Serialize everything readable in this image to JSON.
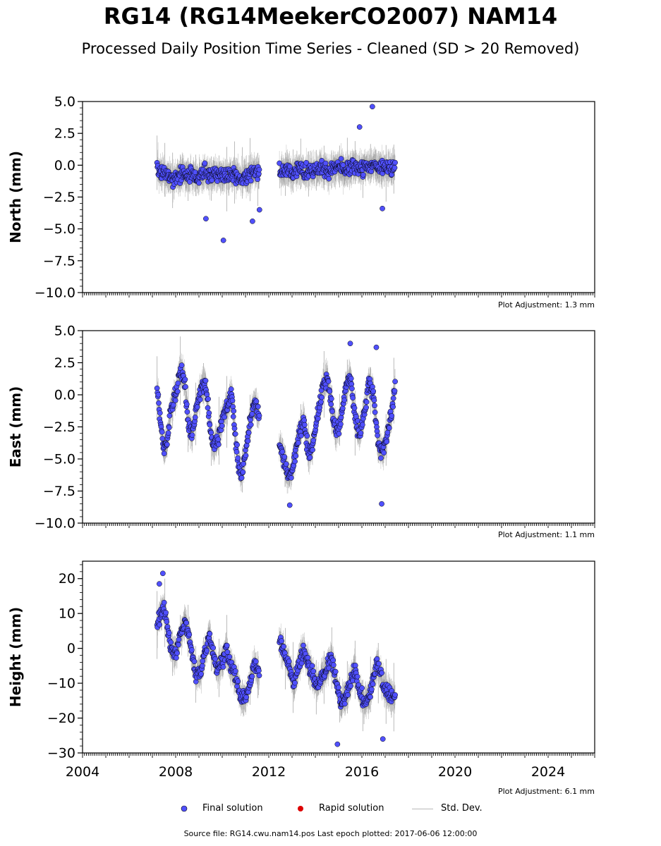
{
  "title": "RG14 (RG14MeekerCO2007) NAM14",
  "subtitle": "Processed Daily Position Time Series - Cleaned (SD > 20 Removed)",
  "footer": "Source file: RG14.cwu.nam14.pos  Last epoch plotted: 2017-06-06 12:00:00",
  "legend": {
    "final": "Final solution",
    "rapid": "Rapid solution",
    "std": "Std. Dev."
  },
  "colors": {
    "final_fill": "#5050ff",
    "final_edge": "#000000",
    "rapid": "#dd0000",
    "std": "#bbbbbb",
    "std_dense": "#777777"
  },
  "chart_data": [
    {
      "type": "scatter",
      "ylabel": "North (mm)",
      "ylim": [
        -10,
        5
      ],
      "yticks": [
        5.0,
        2.5,
        0.0,
        -2.5,
        -5.0,
        -7.5,
        -10.0
      ],
      "ytick_labels": [
        "5.0",
        "2.5",
        "0.0",
        "−2.5",
        "−5.0",
        "−7.5",
        "−10.0"
      ],
      "xlim": [
        2004,
        2026
      ],
      "adjustment": "Plot Adjustment: 1.3 mm",
      "series": [
        {
          "name": "Final solution",
          "x": [
            2007.25,
            2007.5,
            2007.75,
            2008.0,
            2008.25,
            2008.5,
            2008.75,
            2009.0,
            2009.25,
            2009.5,
            2009.75,
            2010.0,
            2010.25,
            2010.5,
            2010.75,
            2011.0,
            2011.25,
            2011.5,
            2012.5,
            2012.75,
            2013.0,
            2013.25,
            2013.5,
            2013.75,
            2014.0,
            2014.25,
            2014.5,
            2014.75,
            2015.0,
            2015.25,
            2015.5,
            2015.75,
            2016.0,
            2016.25,
            2016.5,
            2016.75,
            2017.0,
            2017.25,
            2017.42
          ],
          "y": [
            -0.8,
            -0.6,
            -0.9,
            -1.0,
            -0.7,
            -0.9,
            -0.8,
            -1.0,
            -0.6,
            -0.9,
            -0.7,
            -0.8,
            -0.9,
            -0.6,
            -0.9,
            -0.8,
            -0.7,
            -0.5,
            -0.5,
            -0.3,
            -0.6,
            -0.4,
            -0.3,
            -0.5,
            -0.3,
            -0.2,
            -0.4,
            -0.3,
            -0.2,
            -0.4,
            -0.3,
            -0.1,
            -0.3,
            -0.2,
            0.0,
            -0.2,
            -0.1,
            -0.3,
            0.0
          ]
        }
      ],
      "outliers": {
        "x": [
          2010.05,
          2011.3,
          2011.6,
          2009.3,
          2016.45,
          2015.9,
          2016.88
        ],
        "y": [
          -5.9,
          -4.4,
          -3.5,
          -4.2,
          4.6,
          3.0,
          -3.4
        ]
      }
    },
    {
      "type": "scatter",
      "ylabel": "East (mm)",
      "ylim": [
        -10,
        5
      ],
      "yticks": [
        5.0,
        2.5,
        0.0,
        -2.5,
        -5.0,
        -7.5,
        -10.0
      ],
      "ytick_labels": [
        "5.0",
        "2.5",
        "0.0",
        "−2.5",
        "−5.0",
        "−7.5",
        "−10.0"
      ],
      "xlim": [
        2004,
        2026
      ],
      "adjustment": "Plot Adjustment: 1.1 mm",
      "series": [
        {
          "name": "Final solution",
          "x": [
            2007.2,
            2007.35,
            2007.5,
            2007.65,
            2007.8,
            2008.0,
            2008.2,
            2008.4,
            2008.55,
            2008.7,
            2008.9,
            2009.1,
            2009.3,
            2009.45,
            2009.6,
            2009.8,
            2010.0,
            2010.2,
            2010.4,
            2010.6,
            2010.8,
            2011.0,
            2011.2,
            2011.4,
            2011.55,
            2012.5,
            2012.7,
            2012.9,
            2013.1,
            2013.3,
            2013.5,
            2013.7,
            2013.9,
            2014.1,
            2014.3,
            2014.5,
            2014.7,
            2014.9,
            2015.1,
            2015.3,
            2015.5,
            2015.7,
            2015.9,
            2016.1,
            2016.3,
            2016.5,
            2016.7,
            2016.9,
            2017.1,
            2017.3,
            2017.42
          ],
          "y": [
            0.5,
            -2.0,
            -4.5,
            -3.5,
            -1.0,
            0.0,
            2.0,
            1.0,
            -2.5,
            -3.0,
            -1.0,
            0.5,
            1.0,
            -2.0,
            -4.0,
            -3.5,
            -2.0,
            -1.0,
            0.0,
            -4.0,
            -6.5,
            -4.5,
            -2.0,
            -0.5,
            -1.5,
            -4.0,
            -5.5,
            -6.5,
            -5.0,
            -3.0,
            -2.0,
            -4.5,
            -4.0,
            -1.5,
            0.5,
            1.5,
            -1.0,
            -3.0,
            -2.0,
            0.5,
            1.5,
            -2.0,
            -3.0,
            -1.5,
            1.0,
            0.0,
            -4.0,
            -4.5,
            -3.0,
            -1.0,
            0.5
          ]
        }
      ],
      "outliers": {
        "x": [
          2015.5,
          2016.62,
          2016.85,
          2012.9
        ],
        "y": [
          4.0,
          3.7,
          -8.5,
          -8.6
        ]
      }
    },
    {
      "type": "scatter",
      "ylabel": "Height (mm)",
      "ylim": [
        -30,
        25
      ],
      "yticks": [
        20,
        10,
        0,
        -10,
        -20,
        -30
      ],
      "ytick_labels": [
        "20",
        "10",
        "0",
        "−10",
        "−20",
        "−30"
      ],
      "xlim": [
        2004,
        2026
      ],
      "xticks": [
        2004,
        2008,
        2012,
        2016,
        2020,
        2024
      ],
      "xtick_labels": [
        "2004",
        "2008",
        "2012",
        "2016",
        "2020",
        "2024"
      ],
      "adjustment": "Plot Adjustment: 6.1 mm",
      "series": [
        {
          "name": "Final solution",
          "x": [
            2007.2,
            2007.35,
            2007.5,
            2007.65,
            2007.8,
            2008.0,
            2008.2,
            2008.4,
            2008.55,
            2008.7,
            2008.9,
            2009.1,
            2009.3,
            2009.45,
            2009.6,
            2009.8,
            2010.0,
            2010.2,
            2010.4,
            2010.6,
            2010.8,
            2011.0,
            2011.2,
            2011.4,
            2011.55,
            2012.5,
            2012.7,
            2012.9,
            2013.1,
            2013.3,
            2013.5,
            2013.7,
            2013.9,
            2014.1,
            2014.3,
            2014.5,
            2014.7,
            2014.9,
            2015.1,
            2015.3,
            2015.5,
            2015.7,
            2015.9,
            2016.1,
            2016.3,
            2016.5,
            2016.7,
            2016.9,
            2017.1,
            2017.3,
            2017.42
          ],
          "y": [
            5,
            10,
            12,
            6,
            0,
            -2,
            4,
            8,
            5,
            -2,
            -8,
            -6,
            0,
            4,
            -2,
            -6,
            -4,
            0,
            -6,
            -8,
            -14,
            -14,
            -10,
            -4,
            -8,
            2,
            -2,
            -6,
            -10,
            -4,
            0,
            -4,
            -8,
            -10,
            -8,
            -6,
            -2,
            -10,
            -16,
            -14,
            -10,
            -6,
            -12,
            -16,
            -14,
            -8,
            -4,
            -10,
            -12,
            -14,
            -14
          ]
        }
      ],
      "outliers": {
        "x": [
          2007.45,
          2007.3,
          2014.95,
          2016.9
        ],
        "y": [
          21.5,
          18.5,
          -27.5,
          -26
        ]
      }
    }
  ]
}
